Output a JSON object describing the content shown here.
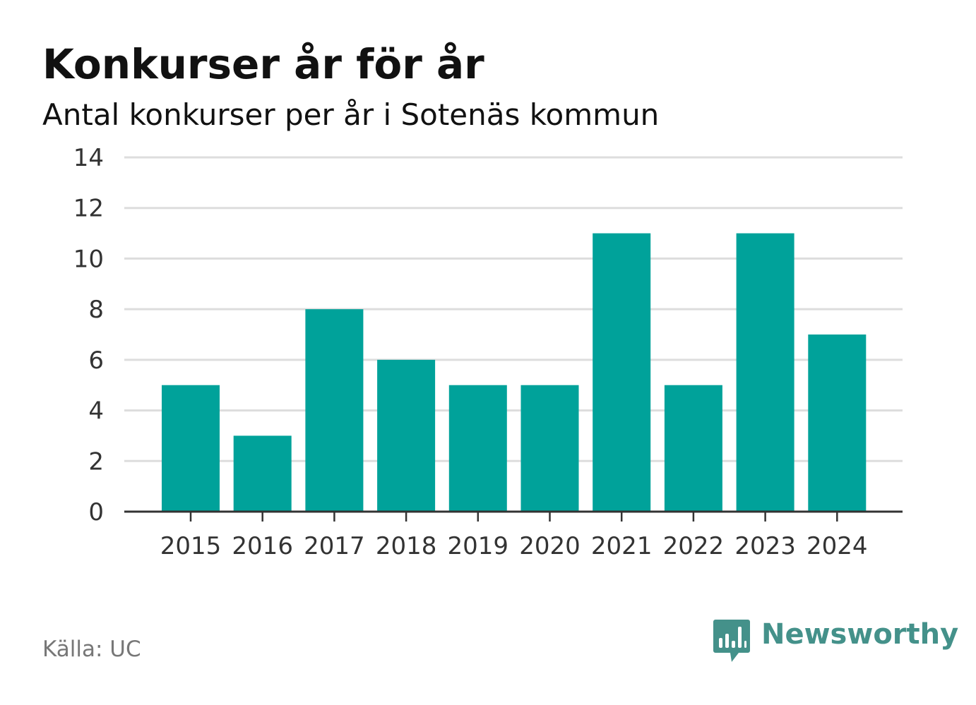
{
  "header": {
    "title": "Konkurser år för år",
    "subtitle": "Antal konkurser per år i Sotenäs kommun"
  },
  "footer": {
    "source": "Källa: UC",
    "logo_text": "Newsworthy",
    "logo_icon": "bar-chart-speech-bubble-icon"
  },
  "colors": {
    "bar": "#00a29a",
    "grid": "#dddddd",
    "axis": "#333333",
    "logo": "#44918a"
  },
  "chart_data": {
    "type": "bar",
    "title": "Konkurser år för år",
    "subtitle": "Antal konkurser per år i Sotenäs kommun",
    "categories": [
      "2015",
      "2016",
      "2017",
      "2018",
      "2019",
      "2020",
      "2021",
      "2022",
      "2023",
      "2024"
    ],
    "values": [
      5,
      3,
      8,
      6,
      5,
      5,
      11,
      5,
      11,
      7
    ],
    "ylim": [
      0,
      14
    ],
    "yticks": [
      0,
      2,
      4,
      6,
      8,
      10,
      12,
      14
    ],
    "grid": true,
    "legend": "none"
  }
}
